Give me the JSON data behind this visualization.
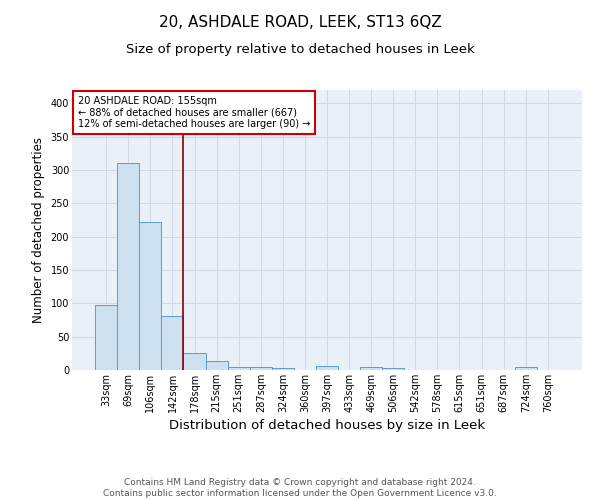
{
  "title": "20, ASHDALE ROAD, LEEK, ST13 6QZ",
  "subtitle": "Size of property relative to detached houses in Leek",
  "xlabel": "Distribution of detached houses by size in Leek",
  "ylabel": "Number of detached properties",
  "categories": [
    "33sqm",
    "69sqm",
    "106sqm",
    "142sqm",
    "178sqm",
    "215sqm",
    "251sqm",
    "287sqm",
    "324sqm",
    "360sqm",
    "397sqm",
    "433sqm",
    "469sqm",
    "506sqm",
    "542sqm",
    "578sqm",
    "615sqm",
    "651sqm",
    "687sqm",
    "724sqm",
    "760sqm"
  ],
  "values": [
    98,
    311,
    222,
    81,
    26,
    14,
    5,
    4,
    3,
    0,
    6,
    0,
    5,
    3,
    0,
    0,
    0,
    0,
    0,
    4,
    0
  ],
  "bar_color": "#cce0f0",
  "bar_edge_color": "#5b9bd5",
  "grid_color": "#d0d8e8",
  "background_color": "#eaf0f8",
  "vline_x": 3.5,
  "vline_color": "#8b0000",
  "annotation_text": "20 ASHDALE ROAD: 155sqm\n← 88% of detached houses are smaller (667)\n12% of semi-detached houses are larger (90) →",
  "annotation_box_color": "#ffffff",
  "annotation_box_edge": "#cc0000",
  "footnote": "Contains HM Land Registry data © Crown copyright and database right 2024.\nContains public sector information licensed under the Open Government Licence v3.0.",
  "ylim": [
    0,
    420
  ],
  "title_fontsize": 11,
  "subtitle_fontsize": 9.5,
  "xlabel_fontsize": 9.5,
  "ylabel_fontsize": 8.5,
  "tick_fontsize": 7,
  "footnote_fontsize": 6.5,
  "annotation_fontsize": 7
}
